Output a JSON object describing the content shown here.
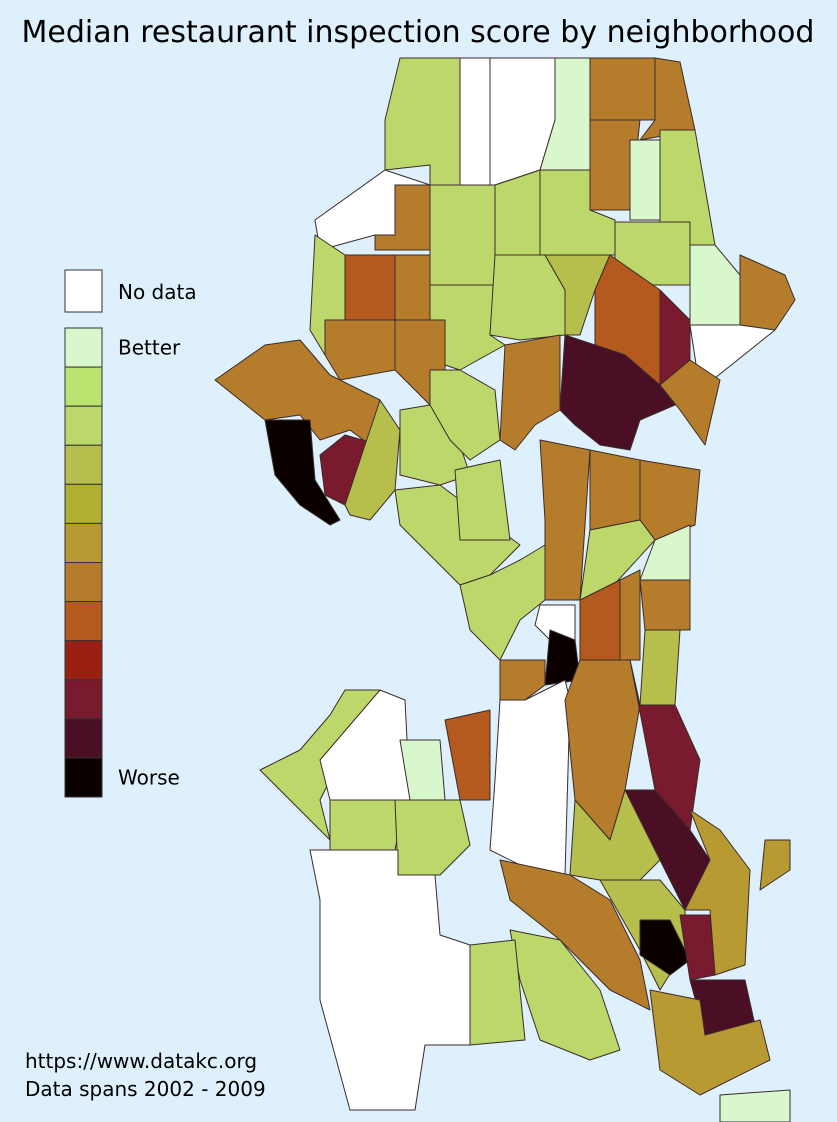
{
  "title": "Median restaurant inspection score by neighborhood",
  "legend": {
    "no_data": "No data",
    "better": "Better",
    "worse": "Worse",
    "no_data_color": "#ffffff",
    "scale_colors": [
      "#d9f7cc",
      "#b9e46f",
      "#bcd86a",
      "#b6be4c",
      "#b0ae33",
      "#b89a32",
      "#b57d2b",
      "#b45a1f",
      "#992012",
      "#7a1a2e",
      "#4a0f24",
      "#0a0000"
    ]
  },
  "footer": {
    "source": "https://www.datakc.org",
    "span": "Data spans 2002 - 2009"
  }
}
